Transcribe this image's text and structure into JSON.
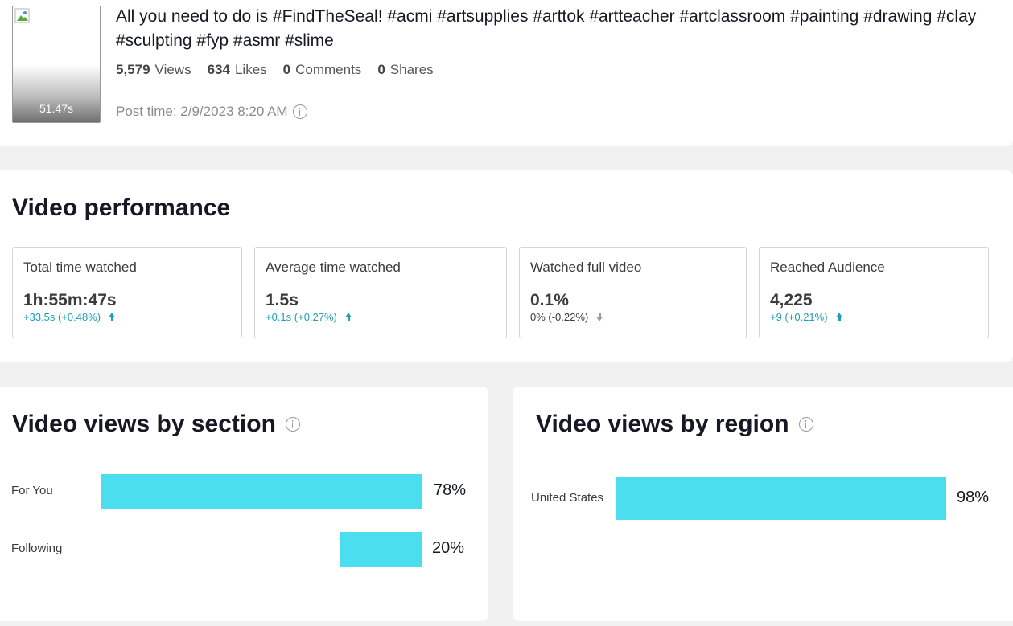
{
  "video": {
    "duration": "51.47s",
    "title": "All you need to do is #FindTheSeal! #acmi #artsupplies #arttok #artteacher #artclassroom #painting #drawing #clay #sculpting #fyp #asmr #slime",
    "stats": {
      "views_value": "5,579",
      "views_label": "Views",
      "likes_value": "634",
      "likes_label": "Likes",
      "comments_value": "0",
      "comments_label": "Comments",
      "shares_value": "0",
      "shares_label": "Shares"
    },
    "post_time": "Post time: 2/9/2023 8:20 AM"
  },
  "performance": {
    "title": "Video performance",
    "metrics": [
      {
        "label": "Total time watched",
        "value": "1h:55m:47s",
        "delta": "+33.5s (+0.48%)",
        "trend": "up"
      },
      {
        "label": "Average time watched",
        "value": "1.5s",
        "delta": "+0.1s (+0.27%)",
        "trend": "up"
      },
      {
        "label": "Watched full video",
        "value": "0.1%",
        "delta": "0% (-0.22%)",
        "trend": "down"
      },
      {
        "label": "Reached Audience",
        "value": "4,225",
        "delta": "+9 (+0.21%)",
        "trend": "up"
      }
    ]
  },
  "section": {
    "title": "Video views by section",
    "rows": [
      {
        "label": "For You",
        "value": 78,
        "display": "78%"
      },
      {
        "label": "Following",
        "value": 20,
        "display": "20%"
      }
    ]
  },
  "region": {
    "title": "Video views by region",
    "rows": [
      {
        "label": "United States",
        "value": 98,
        "display": "98%"
      }
    ]
  },
  "colors": {
    "bar": "#4adeee",
    "trend_up": "#1e9fb3",
    "trend_down": "#9a9a9a"
  }
}
